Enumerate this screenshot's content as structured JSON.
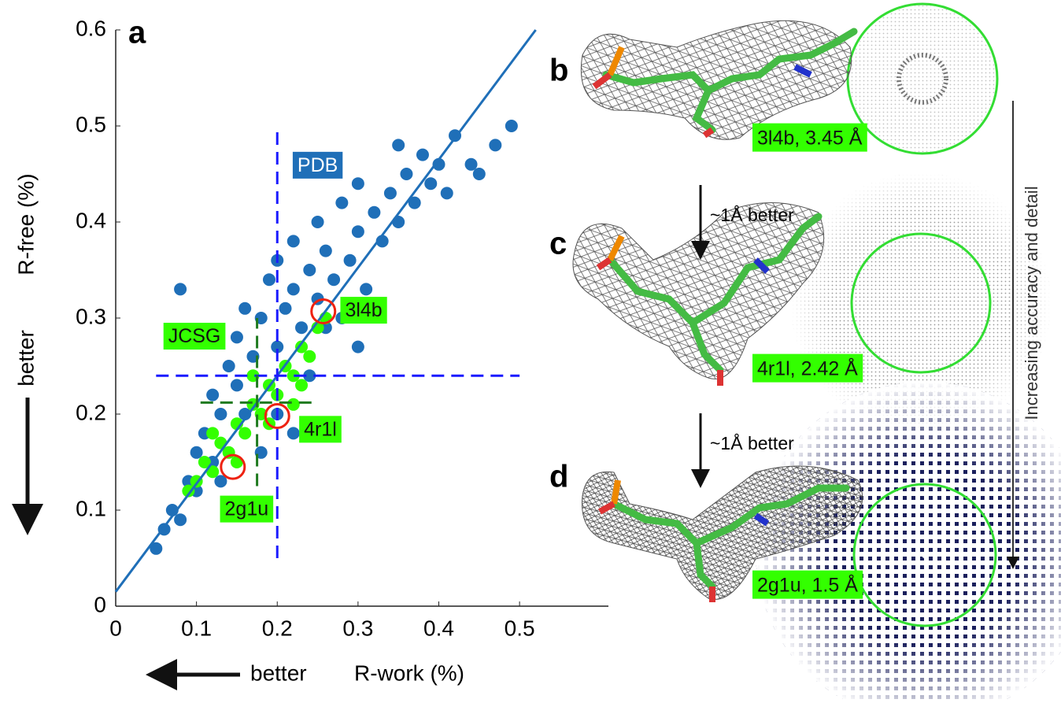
{
  "chart_data": {
    "type": "scatter",
    "panel_letter": "a",
    "x_label": "R-work (%)",
    "x_better": "better",
    "y_label": "R-free (%)",
    "y_better": "better",
    "xlim": [
      0,
      0.61
    ],
    "ylim": [
      0,
      0.6
    ],
    "xticks": [
      0,
      0.1,
      0.2,
      0.3,
      0.4,
      0.5
    ],
    "yticks": [
      0,
      0.1,
      0.2,
      0.3,
      0.4,
      0.5,
      0.6
    ],
    "series": [
      {
        "name": "PDB",
        "color": "#1f6fb8",
        "x": [
          0.05,
          0.06,
          0.07,
          0.08,
          0.09,
          0.1,
          0.1,
          0.11,
          0.12,
          0.12,
          0.13,
          0.14,
          0.15,
          0.15,
          0.16,
          0.17,
          0.18,
          0.19,
          0.2,
          0.2,
          0.21,
          0.22,
          0.22,
          0.23,
          0.24,
          0.25,
          0.25,
          0.26,
          0.27,
          0.28,
          0.28,
          0.29,
          0.3,
          0.3,
          0.31,
          0.32,
          0.33,
          0.34,
          0.35,
          0.36,
          0.37,
          0.38,
          0.39,
          0.4,
          0.41,
          0.42,
          0.44,
          0.45,
          0.47,
          0.49,
          0.2,
          0.16,
          0.08,
          0.35,
          0.3,
          0.24,
          0.18,
          0.13,
          0.22,
          0.26
        ],
        "y": [
          0.06,
          0.08,
          0.1,
          0.09,
          0.13,
          0.12,
          0.16,
          0.18,
          0.15,
          0.22,
          0.2,
          0.25,
          0.23,
          0.28,
          0.31,
          0.26,
          0.3,
          0.34,
          0.27,
          0.36,
          0.31,
          0.33,
          0.38,
          0.29,
          0.35,
          0.4,
          0.32,
          0.37,
          0.34,
          0.42,
          0.3,
          0.36,
          0.39,
          0.44,
          0.33,
          0.41,
          0.38,
          0.43,
          0.4,
          0.45,
          0.42,
          0.47,
          0.44,
          0.46,
          0.43,
          0.49,
          0.46,
          0.45,
          0.48,
          0.5,
          0.2,
          0.2,
          0.33,
          0.48,
          0.27,
          0.24,
          0.16,
          0.13,
          0.18,
          0.29
        ]
      },
      {
        "name": "JCSG",
        "color": "#33ff00",
        "x": [
          0.09,
          0.1,
          0.11,
          0.12,
          0.13,
          0.14,
          0.15,
          0.16,
          0.17,
          0.18,
          0.19,
          0.2,
          0.21,
          0.22,
          0.23,
          0.24,
          0.25,
          0.26,
          0.15,
          0.19,
          0.22,
          0.17,
          0.23,
          0.12
        ],
        "y": [
          0.12,
          0.13,
          0.15,
          0.14,
          0.17,
          0.16,
          0.19,
          0.18,
          0.21,
          0.2,
          0.23,
          0.22,
          0.25,
          0.24,
          0.27,
          0.26,
          0.29,
          0.3,
          0.15,
          0.19,
          0.21,
          0.24,
          0.23,
          0.18
        ]
      }
    ],
    "fit_line": {
      "color": "#1f6fb8",
      "x": [
        0,
        0.52
      ],
      "y": [
        0.015,
        0.6
      ]
    },
    "reference_lines": [
      {
        "color": "#1a1aff",
        "x": [
          0.2,
          0.2
        ],
        "y": [
          0.05,
          0.5
        ]
      },
      {
        "color": "#1a1aff",
        "x": [
          0.05,
          0.5
        ],
        "y": [
          0.24,
          0.24
        ]
      },
      {
        "color": "#1f7a1f",
        "x": [
          0.175,
          0.175
        ],
        "y": [
          0.125,
          0.3
        ]
      },
      {
        "color": "#1f7a1f",
        "x": [
          0.105,
          0.245
        ],
        "y": [
          0.212,
          0.212
        ]
      }
    ],
    "highlights": [
      {
        "label": "3l4b",
        "x": 0.257,
        "y": 0.307
      },
      {
        "label": "4r1l",
        "x": 0.2,
        "y": 0.198
      },
      {
        "label": "2g1u",
        "x": 0.145,
        "y": 0.145
      }
    ]
  },
  "panels": [
    {
      "letter": "b",
      "caption": "3l4b, 3.45 Å"
    },
    {
      "letter": "c",
      "caption": "4r1l, 2.42 Å"
    },
    {
      "letter": "d",
      "caption": "2g1u, 1.5 Å"
    }
  ],
  "steps": [
    "~1Å better",
    "~1Å better"
  ],
  "trend": "Increasing accuracy and detail"
}
